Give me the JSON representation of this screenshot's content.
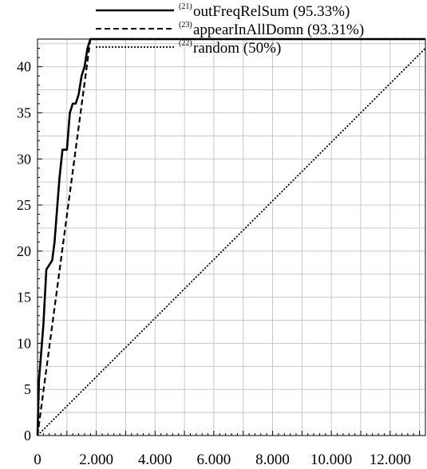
{
  "chart_data": {
    "type": "line",
    "title": "",
    "xlabel": "",
    "ylabel": "",
    "xlim": [
      0,
      13200
    ],
    "ylim": [
      0,
      43
    ],
    "x_ticks": [
      0,
      2000,
      4000,
      6000,
      8000,
      10000,
      12000
    ],
    "x_tick_labels": [
      "0",
      "2.000",
      "4.000",
      "6.000",
      "8.000",
      "10.000",
      "12.000"
    ],
    "y_ticks": [
      0,
      5,
      10,
      15,
      20,
      25,
      30,
      35,
      40
    ],
    "y_tick_labels": [
      "0",
      "5",
      "10",
      "15",
      "20",
      "25",
      "30",
      "35",
      "40"
    ],
    "grid": true,
    "legend_position": "top-center",
    "series": [
      {
        "name": "outFreqRelSum (95.33%)",
        "legend_ref": "(21)",
        "style": "solid",
        "x": [
          0,
          50,
          100,
          200,
          300,
          500,
          580,
          700,
          750,
          850,
          1000,
          1100,
          1200,
          1300,
          1400,
          1500,
          1600,
          1700,
          1800,
          13200
        ],
        "y": [
          0,
          6,
          8,
          12,
          18,
          19,
          21,
          26,
          28,
          31,
          31,
          35,
          36,
          36,
          37,
          39,
          40,
          42,
          43,
          43
        ]
      },
      {
        "name": "appearInAllDomn (93.31%)",
        "legend_ref": "(23)",
        "style": "dashed",
        "x": [
          0,
          1800,
          13200
        ],
        "y": [
          0,
          43,
          43
        ]
      },
      {
        "name": "random (50%)",
        "legend_ref": "(22)",
        "style": "dotted",
        "x": [
          0,
          13200
        ],
        "y": [
          0,
          42
        ]
      }
    ]
  }
}
